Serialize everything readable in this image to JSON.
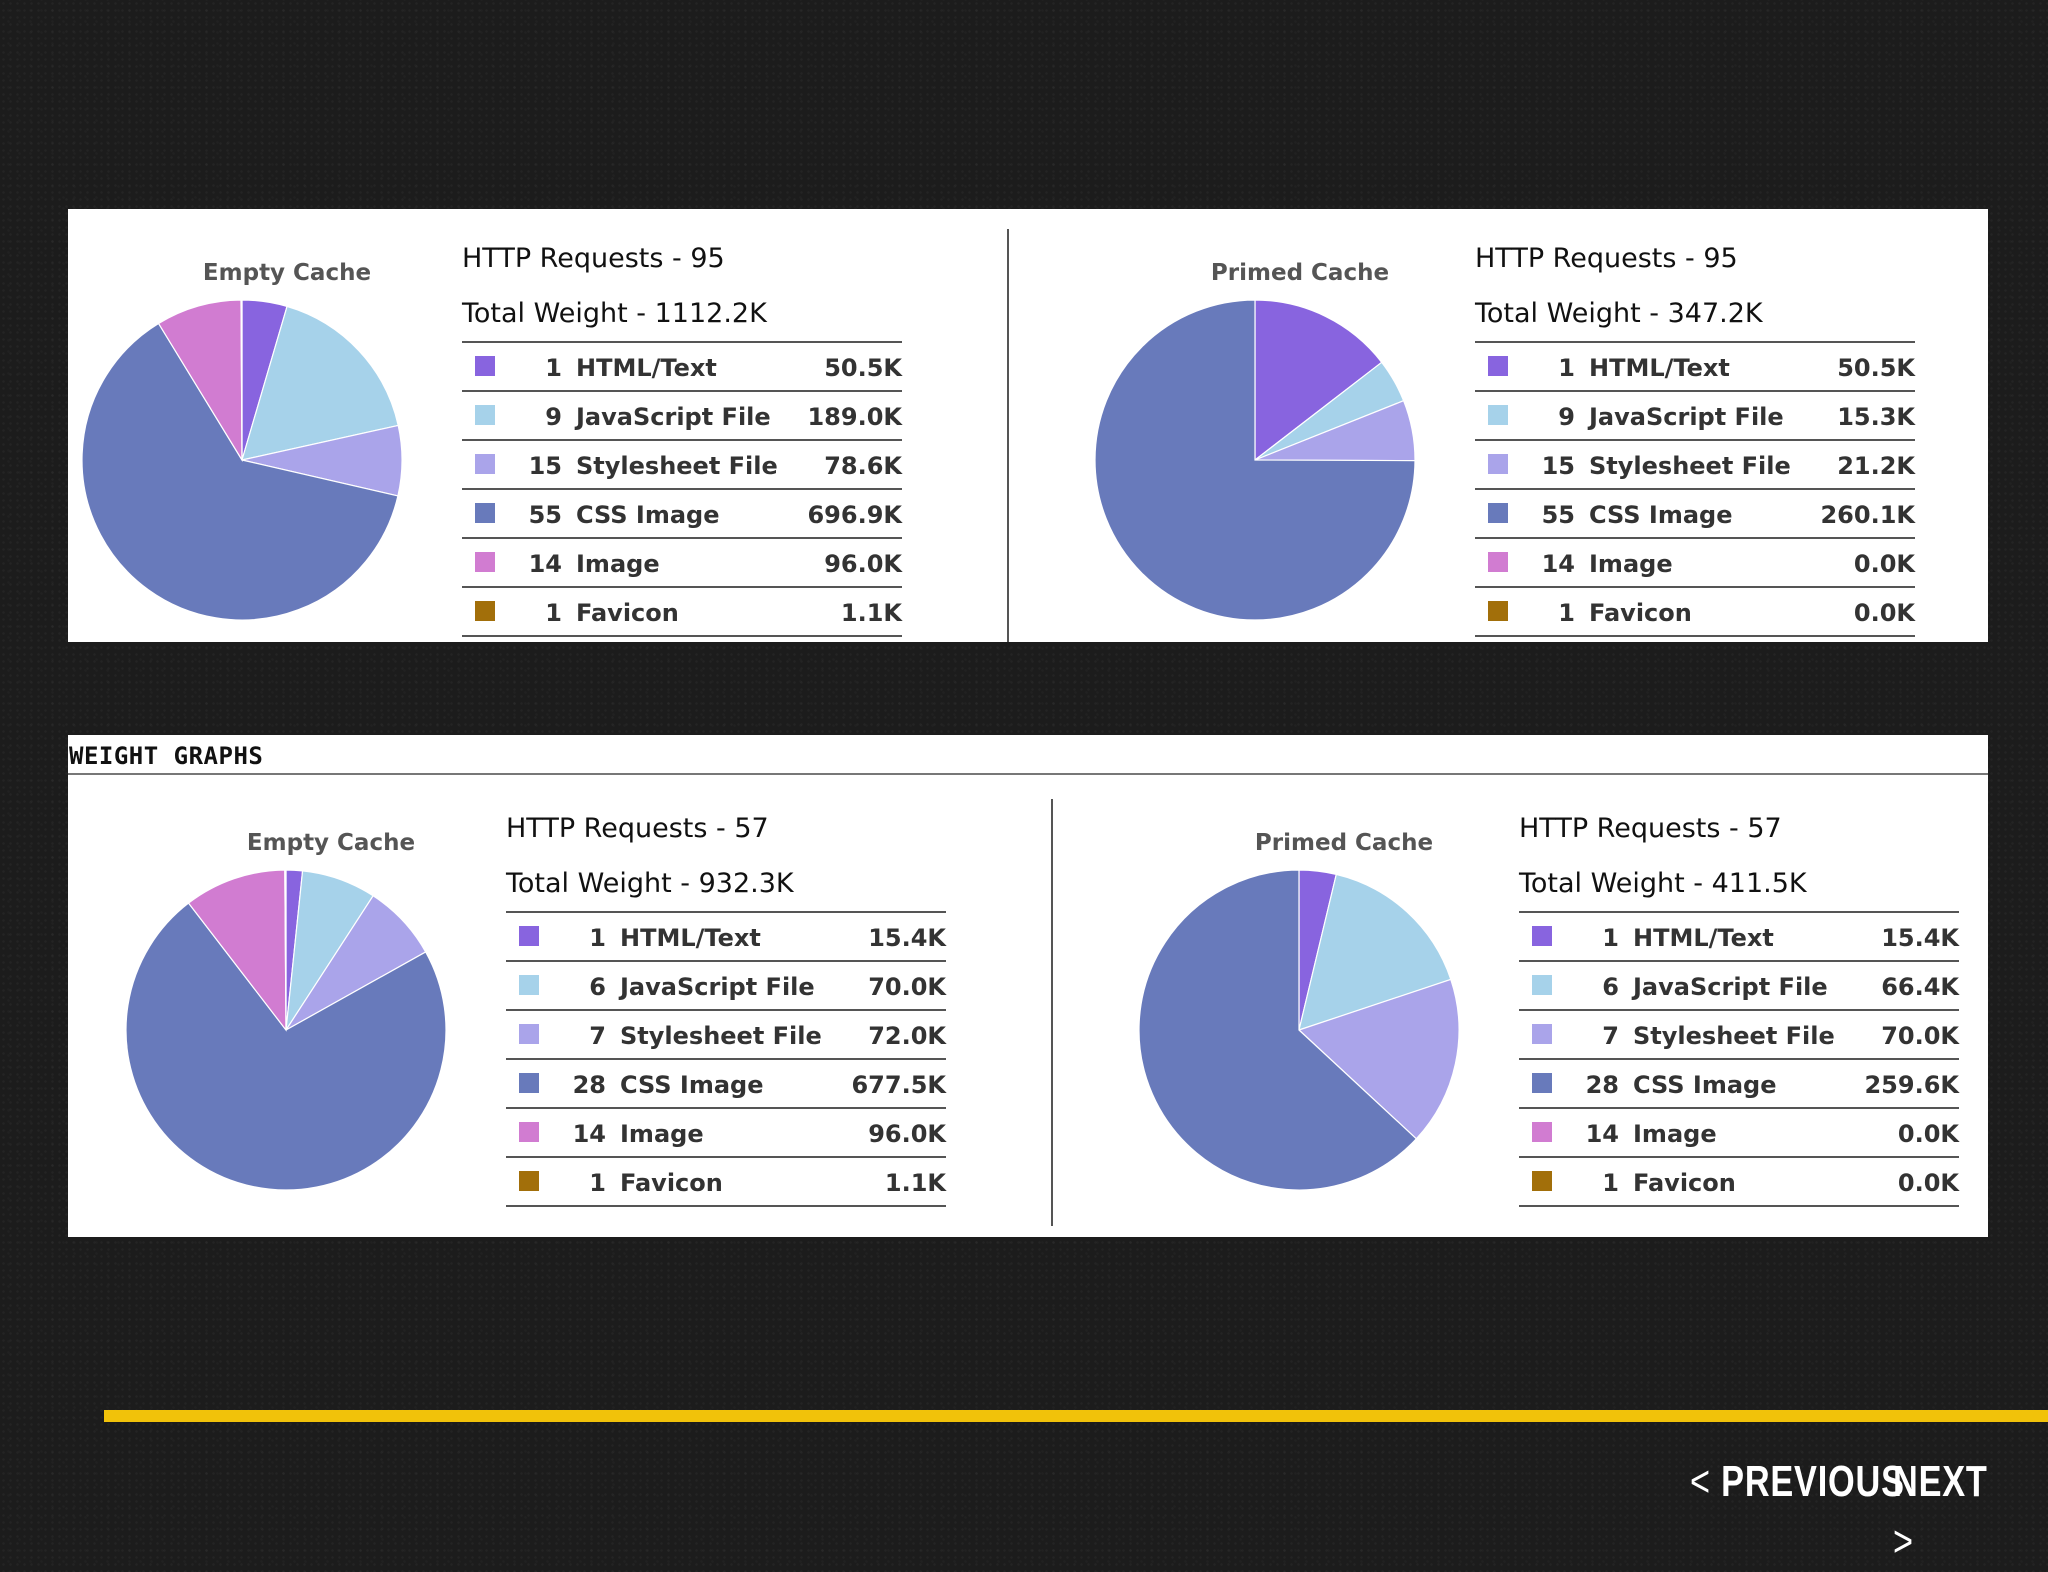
{
  "chart_data": [
    {
      "type": "pie",
      "title": "Empty Cache",
      "http_requests_label": "HTTP Requests - 95",
      "total_weight_label": "Total Weight - 1112.2K",
      "slices": [
        {
          "count": "1",
          "label": "HTML/Text",
          "size": "50.5K",
          "value": 50.5,
          "color": "#8864df"
        },
        {
          "count": "9",
          "label": "JavaScript File",
          "size": "189.0K",
          "value": 189.0,
          "color": "#a6d2ea"
        },
        {
          "count": "15",
          "label": "Stylesheet File",
          "size": "78.6K",
          "value": 78.6,
          "color": "#aaa4ea"
        },
        {
          "count": "55",
          "label": "CSS Image",
          "size": "696.9K",
          "value": 696.9,
          "color": "#687abb"
        },
        {
          "count": "14",
          "label": "Image",
          "size": "96.0K",
          "value": 96.0,
          "color": "#d17cd1"
        },
        {
          "count": "1",
          "label": "Favicon",
          "size": "1.1K",
          "value": 1.1,
          "color": "#a26f0a"
        }
      ]
    },
    {
      "type": "pie",
      "title": "Primed Cache",
      "http_requests_label": "HTTP Requests - 95",
      "total_weight_label": "Total Weight - 347.2K",
      "slices": [
        {
          "count": "1",
          "label": "HTML/Text",
          "size": "50.5K",
          "value": 50.5,
          "color": "#8864df"
        },
        {
          "count": "9",
          "label": "JavaScript File",
          "size": "15.3K",
          "value": 15.3,
          "color": "#a6d2ea"
        },
        {
          "count": "15",
          "label": "Stylesheet File",
          "size": "21.2K",
          "value": 21.2,
          "color": "#aaa4ea"
        },
        {
          "count": "55",
          "label": "CSS Image",
          "size": "260.1K",
          "value": 260.1,
          "color": "#687abb"
        },
        {
          "count": "14",
          "label": "Image",
          "size": "0.0K",
          "value": 0.0,
          "color": "#d17cd1"
        },
        {
          "count": "1",
          "label": "Favicon",
          "size": "0.0K",
          "value": 0.0,
          "color": "#a26f0a"
        }
      ]
    },
    {
      "type": "pie",
      "title": "Empty Cache",
      "http_requests_label": "HTTP Requests - 57",
      "total_weight_label": "Total Weight - 932.3K",
      "slices": [
        {
          "count": "1",
          "label": "HTML/Text",
          "size": "15.4K",
          "value": 15.4,
          "color": "#8864df"
        },
        {
          "count": "6",
          "label": "JavaScript File",
          "size": "70.0K",
          "value": 70.0,
          "color": "#a6d2ea"
        },
        {
          "count": "7",
          "label": "Stylesheet File",
          "size": "72.0K",
          "value": 72.0,
          "color": "#aaa4ea"
        },
        {
          "count": "28",
          "label": "CSS Image",
          "size": "677.5K",
          "value": 677.5,
          "color": "#687abb"
        },
        {
          "count": "14",
          "label": "Image",
          "size": "96.0K",
          "value": 96.0,
          "color": "#d17cd1"
        },
        {
          "count": "1",
          "label": "Favicon",
          "size": "1.1K",
          "value": 1.1,
          "color": "#a26f0a"
        }
      ]
    },
    {
      "type": "pie",
      "title": "Primed Cache",
      "http_requests_label": "HTTP Requests - 57",
      "total_weight_label": "Total Weight - 411.5K",
      "slices": [
        {
          "count": "1",
          "label": "HTML/Text",
          "size": "15.4K",
          "value": 15.4,
          "color": "#8864df"
        },
        {
          "count": "6",
          "label": "JavaScript File",
          "size": "66.4K",
          "value": 66.4,
          "color": "#a6d2ea"
        },
        {
          "count": "7",
          "label": "Stylesheet File",
          "size": "70.0K",
          "value": 70.0,
          "color": "#aaa4ea"
        },
        {
          "count": "28",
          "label": "CSS Image",
          "size": "259.6K",
          "value": 259.6,
          "color": "#687abb"
        },
        {
          "count": "14",
          "label": "Image",
          "size": "0.0K",
          "value": 0.0,
          "color": "#d17cd1"
        },
        {
          "count": "1",
          "label": "Favicon",
          "size": "0.0K",
          "value": 0.0,
          "color": "#a26f0a"
        }
      ]
    }
  ],
  "weight_graphs_header": "WEIGHT GRAPHS",
  "nav": {
    "previous_label": "PREVIOUS",
    "next_label": "NEXT",
    "previous_icon": "chevron-left-icon",
    "next_icon": "chevron-right-icon"
  },
  "colors": {
    "background": "#1c1c1c",
    "panel": "#ffffff",
    "accent_bar": "#f1c20a"
  }
}
